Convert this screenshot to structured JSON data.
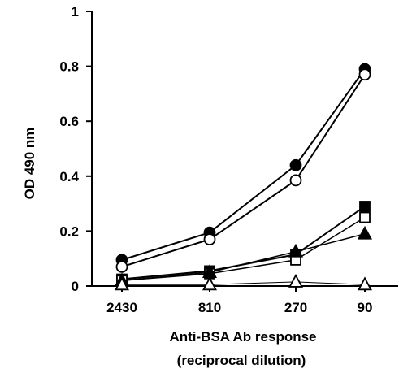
{
  "chart_data": {
    "type": "line",
    "categories": [
      "2430",
      "810",
      "270",
      "90"
    ],
    "ylabel": "OD 490 nm",
    "xlabel_line1": "Anti-BSA Ab response",
    "xlabel_line2": "(reciprocal dilution)",
    "ylim": [
      0,
      1
    ],
    "yticks": [
      "0",
      "0.2",
      "0.4",
      "0.6",
      "0.8",
      "1"
    ],
    "grid": false,
    "series": [
      {
        "marker": "filled-circle",
        "values": [
          0.095,
          0.195,
          0.44,
          0.79
        ]
      },
      {
        "marker": "open-circle",
        "values": [
          0.07,
          0.17,
          0.385,
          0.77
        ]
      },
      {
        "marker": "filled-square",
        "values": [
          0.025,
          0.055,
          0.115,
          0.29
        ]
      },
      {
        "marker": "open-square",
        "values": [
          0.02,
          0.045,
          0.095,
          0.25
        ]
      },
      {
        "marker": "filled-triangle",
        "values": [
          0.02,
          0.05,
          0.125,
          0.19
        ]
      },
      {
        "marker": "open-triangle",
        "values": [
          0.005,
          0.005,
          0.015,
          0.005
        ]
      }
    ]
  }
}
